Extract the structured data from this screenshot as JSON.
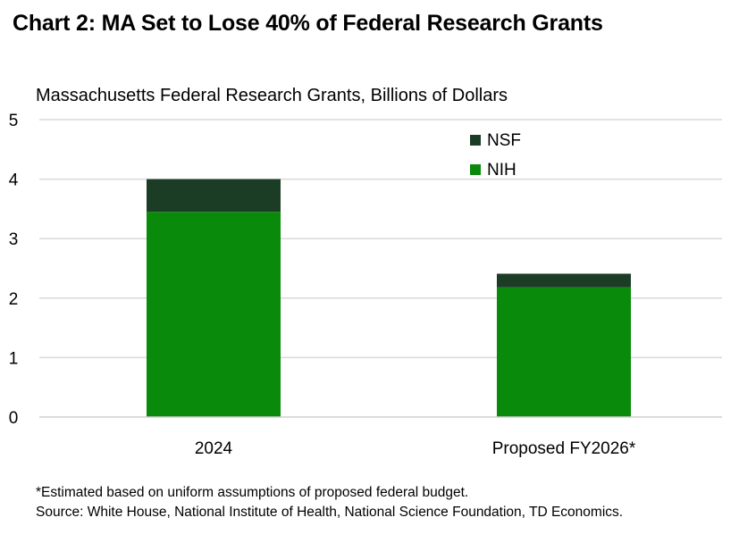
{
  "chart_data": {
    "type": "bar",
    "stacked": true,
    "title": "Chart 2: MA Set to Lose 40% of Federal Research Grants",
    "subtitle": "Massachusetts Federal Research Grants, Billions of Dollars",
    "categories": [
      "2024",
      "Proposed FY2026*"
    ],
    "series": [
      {
        "name": "NIH",
        "color": "#0a8a0a",
        "values": [
          3.45,
          2.18
        ]
      },
      {
        "name": "NSF",
        "color": "#1c3d25",
        "values": [
          0.55,
          0.23
        ]
      }
    ],
    "ylim": [
      0,
      5
    ],
    "yticks": [
      0,
      1,
      2,
      3,
      4,
      5
    ],
    "ytick_labels": [
      "0",
      "1",
      "2",
      "3",
      "4",
      "5"
    ],
    "legend": [
      "NSF",
      "NIH"
    ],
    "legend_position": "top-right",
    "grid": true
  },
  "footnotes": {
    "note": "*Estimated based on uniform assumptions of proposed federal budget.",
    "source": "Source: White House, National Institute of Health, National Science Foundation, TD Economics."
  }
}
